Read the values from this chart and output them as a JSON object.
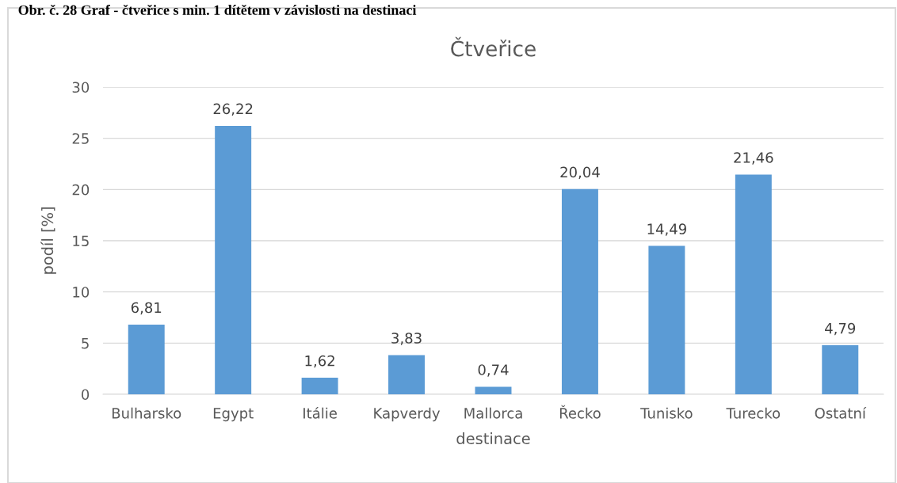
{
  "chart_data": {
    "type": "bar",
    "title": "Čtveřice",
    "xlabel": "destinace",
    "ylabel": "podíl [%]",
    "annotations": [
      "Obr. č. 28 Graf - čtveřice s min. 1 dítětem v závislosti na destinaci"
    ],
    "categories": [
      "Bulharsko",
      "Egypt",
      "Itálie",
      "Kapverdy",
      "Mallorca",
      "Řecko",
      "Tunisko",
      "Turecko",
      "Ostatní"
    ],
    "values": [
      6.81,
      26.22,
      1.62,
      3.83,
      0.74,
      20.04,
      14.49,
      21.46,
      4.79
    ],
    "value_labels": [
      "6,81",
      "26,22",
      "1,62",
      "3,83",
      "0,74",
      "20,04",
      "14,49",
      "21,46",
      "4,79"
    ],
    "color": "#5b9bd5",
    "ylim": [
      0,
      30
    ],
    "yticks": [
      0,
      5,
      10,
      15,
      20,
      25,
      30
    ],
    "grid": "y",
    "legend": false
  }
}
